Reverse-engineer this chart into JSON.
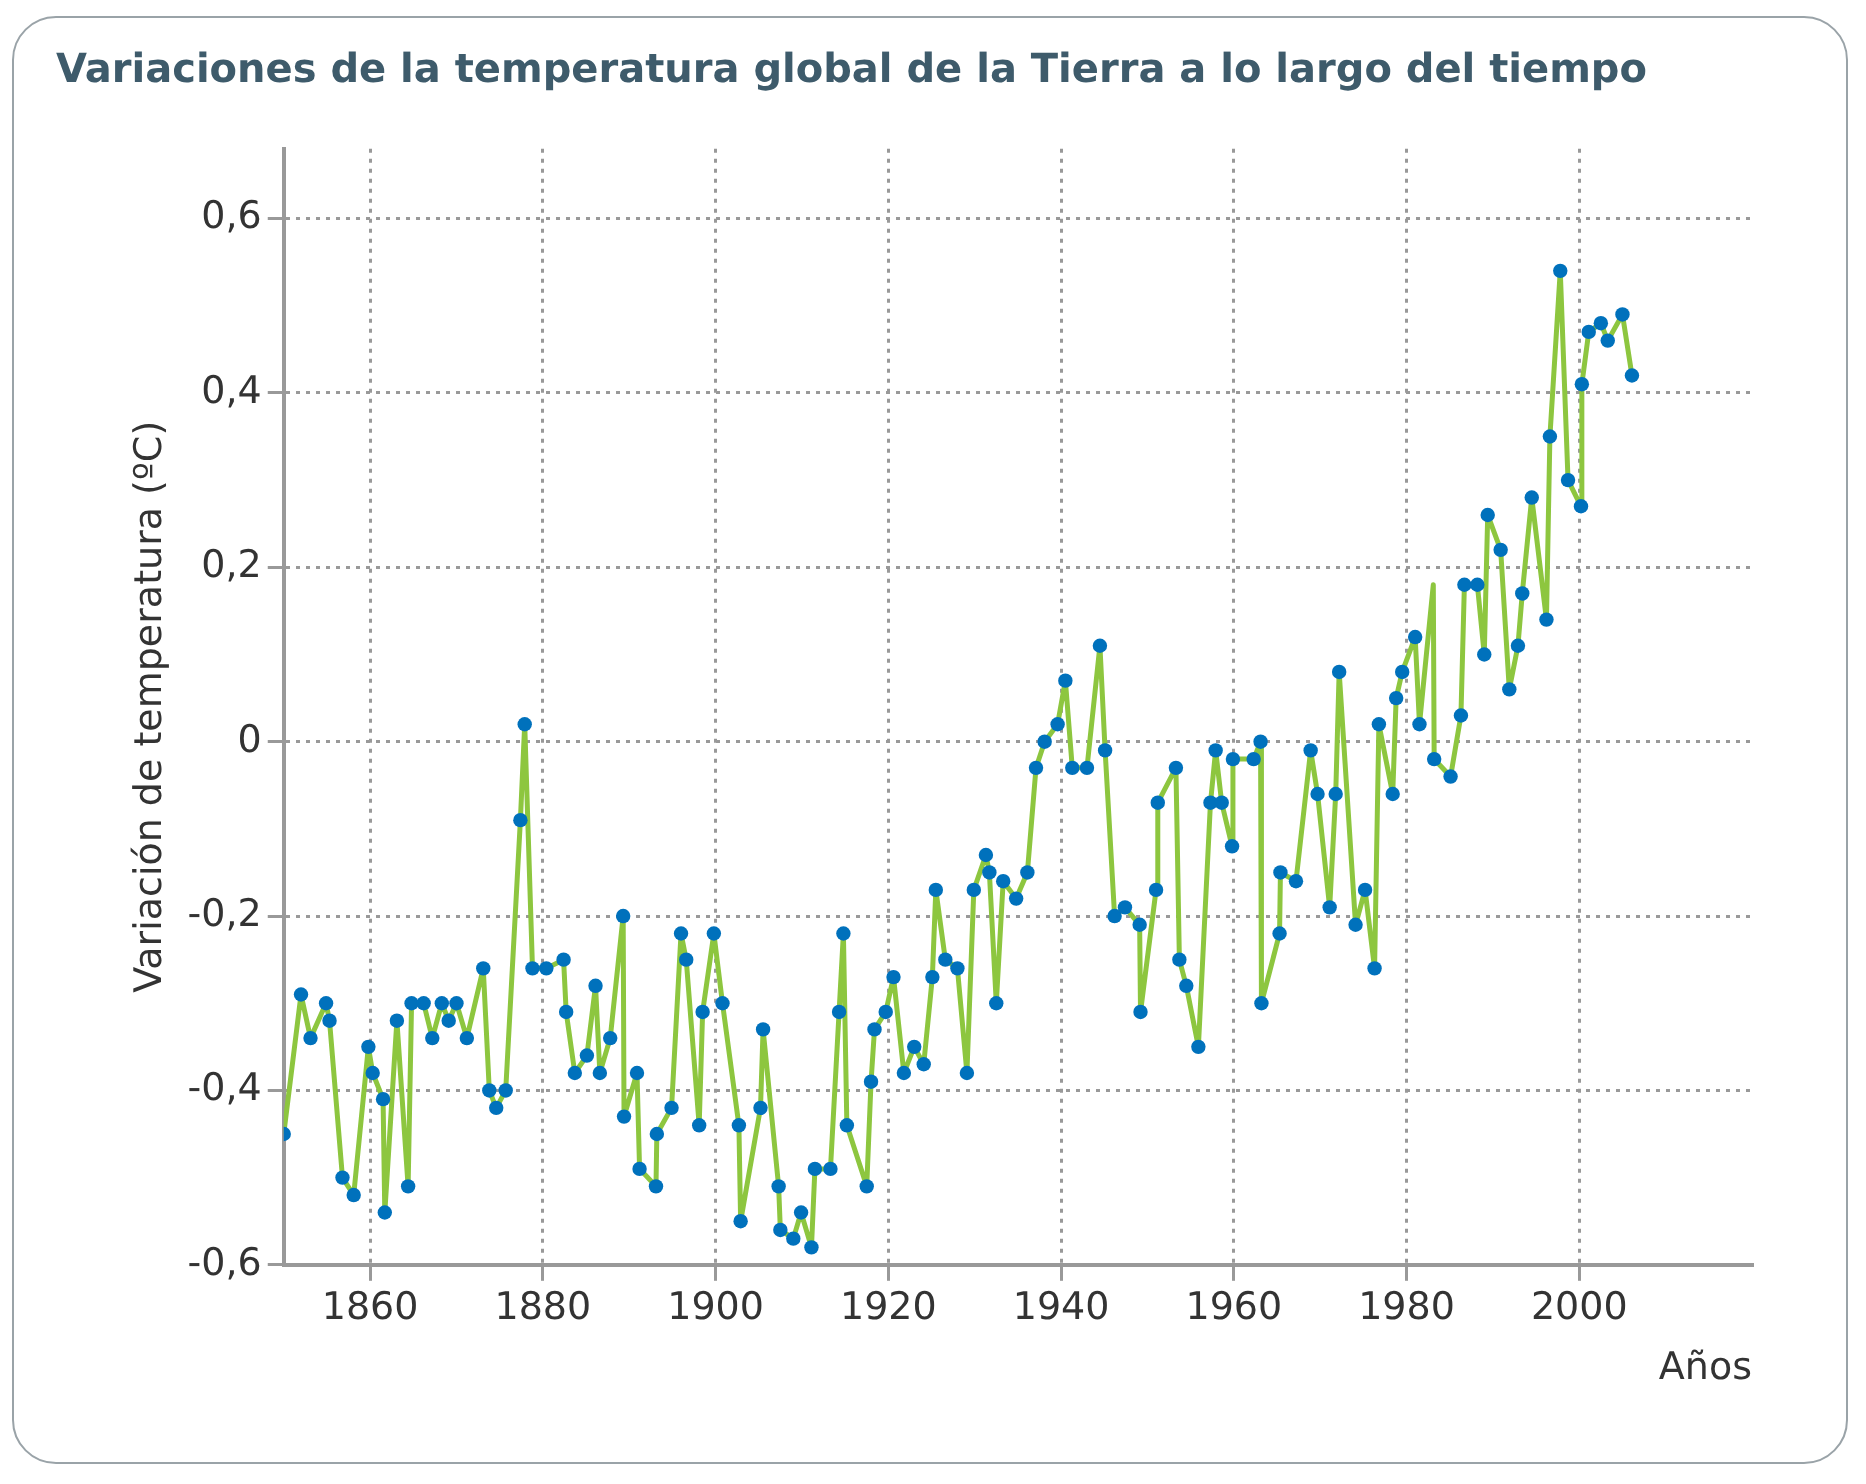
{
  "chart_data": {
    "type": "line",
    "title": "Variaciones de la temperatura global de la Tierra a lo largo del tiempo",
    "xlabel": "Años",
    "ylabel": "Variación de temperatura (ºC)",
    "x": [
      1850,
      1852,
      1853.1,
      1854.9,
      1855.3,
      1856.8,
      1858.1,
      1859.8,
      1860.3,
      1861.5,
      1861.7,
      1863.1,
      1864.4,
      1864.8,
      1866.2,
      1867.2,
      1868.3,
      1869.1,
      1870,
      1871.2,
      1873.1,
      1873.8,
      1874.6,
      1875.7,
      1877.4,
      1877.9,
      1878.8,
      1880.4,
      1882.4,
      1882.7,
      1883.7,
      1885.1,
      1886.1,
      1886.6,
      1887.8,
      1889.3,
      1889.4,
      1890.9,
      1891.2,
      1893.1,
      1893.2,
      1894.9,
      1896,
      1896.6,
      1898.1,
      1898.5,
      1899.8,
      1900.8,
      1902.7,
      1902.9,
      1905.2,
      1905.5,
      1907.3,
      1907.5,
      1909,
      1909.9,
      1911.1,
      1911.5,
      1913.3,
      1914.3,
      1914.8,
      1915.2,
      1917.5,
      1918,
      1918.4,
      1919.7,
      1920.6,
      1921.8,
      1923,
      1924.1,
      1925.1,
      1925.5,
      1926.6,
      1928,
      1929.1,
      1929.9,
      1931.3,
      1931.7,
      1932.5,
      1933.3,
      1934.8,
      1936.1,
      1937.1,
      1938.1,
      1939.6,
      1940.5,
      1941.3,
      1943,
      1944.5,
      1945.1,
      1946.2,
      1947.4,
      1949.1,
      1949.2,
      1951,
      1951.2,
      1953.3,
      1953.7,
      1954.5,
      1955.9,
      1957.3,
      1957.9,
      1958.6,
      1959.8,
      1959.9,
      1962.3,
      1963.1,
      1963.2,
      1965.3,
      1965.4,
      1967.2,
      1968.9,
      1969.7,
      1971.1,
      1971.8,
      1972.2,
      1974.1,
      1975.2,
      1976.3,
      1976.8,
      1978.4,
      1978.8,
      1979.5,
      1981,
      1981.5,
      1983.1,
      1983.2,
      1985.1,
      1986.3,
      1986.7,
      1988.2,
      1989,
      1989.4,
      1990.9,
      1991.9,
      1992.9,
      1993.4,
      1994.5,
      1996.2,
      1996.6,
      1997.8,
      1998.7,
      2000.2,
      2000.3,
      2001.1,
      2002.5,
      2003.3,
      2005,
      2006.1
    ],
    "series": [
      {
        "color": "#8dc63f",
        "values": [
          -0.45,
          -0.29,
          -0.34,
          -0.3,
          -0.32,
          -0.5,
          -0.52,
          -0.35,
          -0.38,
          -0.41,
          -0.54,
          -0.32,
          -0.51,
          -0.3,
          -0.3,
          -0.34,
          -0.3,
          -0.32,
          -0.3,
          -0.34,
          -0.26,
          -0.4,
          -0.42,
          -0.4,
          -0.09,
          0.02,
          -0.26,
          -0.26,
          -0.25,
          -0.31,
          -0.38,
          -0.36,
          -0.28,
          -0.38,
          -0.34,
          -0.2,
          -0.43,
          -0.38,
          -0.49,
          -0.51,
          -0.45,
          -0.42,
          -0.22,
          -0.25,
          -0.44,
          -0.31,
          -0.22,
          -0.3,
          -0.44,
          -0.55,
          -0.42,
          -0.33,
          -0.51,
          -0.56,
          -0.57,
          -0.54,
          -0.58,
          -0.49,
          -0.49,
          -0.31,
          -0.22,
          -0.44,
          -0.51,
          -0.39,
          -0.33,
          -0.31,
          -0.27,
          -0.38,
          -0.35,
          -0.37,
          -0.27,
          -0.17,
          -0.25,
          -0.26,
          -0.38,
          -0.17,
          -0.13,
          -0.15,
          -0.3,
          -0.16,
          -0.18,
          -0.15,
          -0.03,
          0,
          0.02,
          0.07,
          -0.03,
          -0.03,
          0.11,
          -0.01,
          -0.2,
          -0.19,
          -0.21,
          -0.31,
          -0.17,
          -0.07,
          -0.03,
          -0.25,
          -0.28,
          -0.35,
          -0.07,
          -0.01,
          -0.07,
          -0.12,
          -0.02,
          -0.02,
          0,
          -0.3,
          -0.22,
          -0.15,
          -0.16,
          -0.01,
          -0.06,
          -0.19,
          -0.06,
          0.08,
          -0.21,
          -0.17,
          -0.26,
          0.02,
          -0.06,
          0.05,
          0.08,
          0.12,
          0.02,
          0.18,
          -0.02,
          -0.04,
          0.03,
          0.18,
          0.18,
          0.1,
          0.26,
          0.22,
          0.06,
          0.11,
          0.17,
          0.28,
          0.14,
          0.35,
          0.54,
          0.3,
          0.27,
          0.41,
          0.47,
          0.48,
          0.46,
          0.49,
          0.42
        ],
        "colors": [
          "#0071bc",
          "#0071bc",
          "#0071bc",
          "#0071bc",
          "#0071bc",
          "#0071bc",
          "#0071bc",
          "#0071bc",
          "#0071bc",
          "#0071bc",
          "#0071bc",
          "#0071bc",
          "#0071bc",
          "#0071bc",
          "#0071bc",
          "#0071bc",
          "#0071bc",
          "#0071bc",
          "#0071bc",
          "#0071bc",
          "#0071bc",
          "#0071bc",
          "#0071bc",
          "#0071bc",
          "#0071bc",
          "#0071bc",
          "#0071bc",
          "#0071bc",
          "#0071bc",
          "#0071bc",
          "#0071bc",
          "#0071bc",
          "#0071bc",
          "#0071bc",
          "#0071bc",
          "#0071bc",
          "#0071bc",
          "#0071bc",
          "#0071bc",
          "#0071bc",
          "#0071bc",
          "#0071bc",
          "#0071bc",
          "#0071bc",
          "#0071bc",
          "#0071bc",
          "#0071bc",
          "#0071bc",
          "#0071bc",
          "#0071bc",
          "#0071bc",
          "#0071bc",
          "#0071bc",
          "#0071bc",
          "#0071bc",
          "#0071bc",
          "#0071bc",
          "#0071bc",
          "#0071bc",
          "#0071bc",
          "#0071bc",
          "#0071bc",
          "#0071bc",
          "#0071bc",
          "#0071bc",
          "#0071bc",
          "#0071bc",
          "#0071bc",
          "#0071bc",
          "#0071bc",
          "#0071bc",
          "#0071bc",
          "#0071bc",
          "#0071bc",
          "#0071bc",
          "#0071bc",
          "#0071bc",
          "#0071bc",
          "#0071bc",
          "#0071bc",
          "#0071bc",
          "#0071bc",
          "#0071bc",
          "#0071bc",
          "#0071bc",
          "#0071bc",
          "#0071bc",
          "#0071bc",
          "#0071bc",
          "#0071bc",
          "#0071bc",
          "#0071bc",
          "#0071bc",
          "#0071bc",
          "#0071bc",
          "#0071bc",
          "#0071bc",
          "#0071bc",
          "#0071bc",
          "#0071bc",
          "#0071bc",
          "#0071bc",
          "#0071bc",
          "#0071bc",
          "#0071bc",
          "#0071bc",
          "#0071bc",
          "#0071bc",
          "#0071bc",
          "#0071bc",
          "#0071bc",
          "#0071bc",
          "#0071bc",
          "#0071bc",
          "#0071bc",
          "#0071bc",
          "#0071bc",
          "#0071bc",
          "#0071bc",
          "#0071bc",
          "#0071bc",
          "#0071bc",
          "#0071bc",
          "#0071bc",
          "#0071bc",
          null,
          "#0071bc",
          "#0071bc",
          "#0071bc",
          "#0071bc",
          "#0071bc",
          "#0071bc",
          "#0071bc",
          "#0071bc",
          "#0071bc",
          "#0071bc",
          "#0071bc",
          "#0071bc",
          "#0071bc",
          "#0071bc",
          "#0071bc",
          "#0071bc",
          "#0071bc",
          "#0071bc",
          "#0071bc",
          "#0071bc",
          "#0071bc",
          "#0071bc",
          "#0071bc"
        ]
      }
    ],
    "xlim": [
      1850,
      2020
    ],
    "xticks": [
      1860,
      1880,
      1900,
      1920,
      1940,
      1960,
      1980,
      2000
    ],
    "ylim": [
      -0.6,
      0.68
    ],
    "yticks": [
      {
        "value": -0.6,
        "label": "-0,6"
      },
      {
        "value": -0.4,
        "label": "-0,4"
      },
      {
        "value": -0.2,
        "label": "-0,2"
      },
      0,
      {
        "value": 0.2,
        "label": "0,2"
      },
      {
        "value": 0.4,
        "label": "0,4"
      },
      {
        "value": 0.6,
        "label": "0,6"
      }
    ],
    "grid": true,
    "marker": "circle",
    "line_style": "solid",
    "legend": false
  }
}
